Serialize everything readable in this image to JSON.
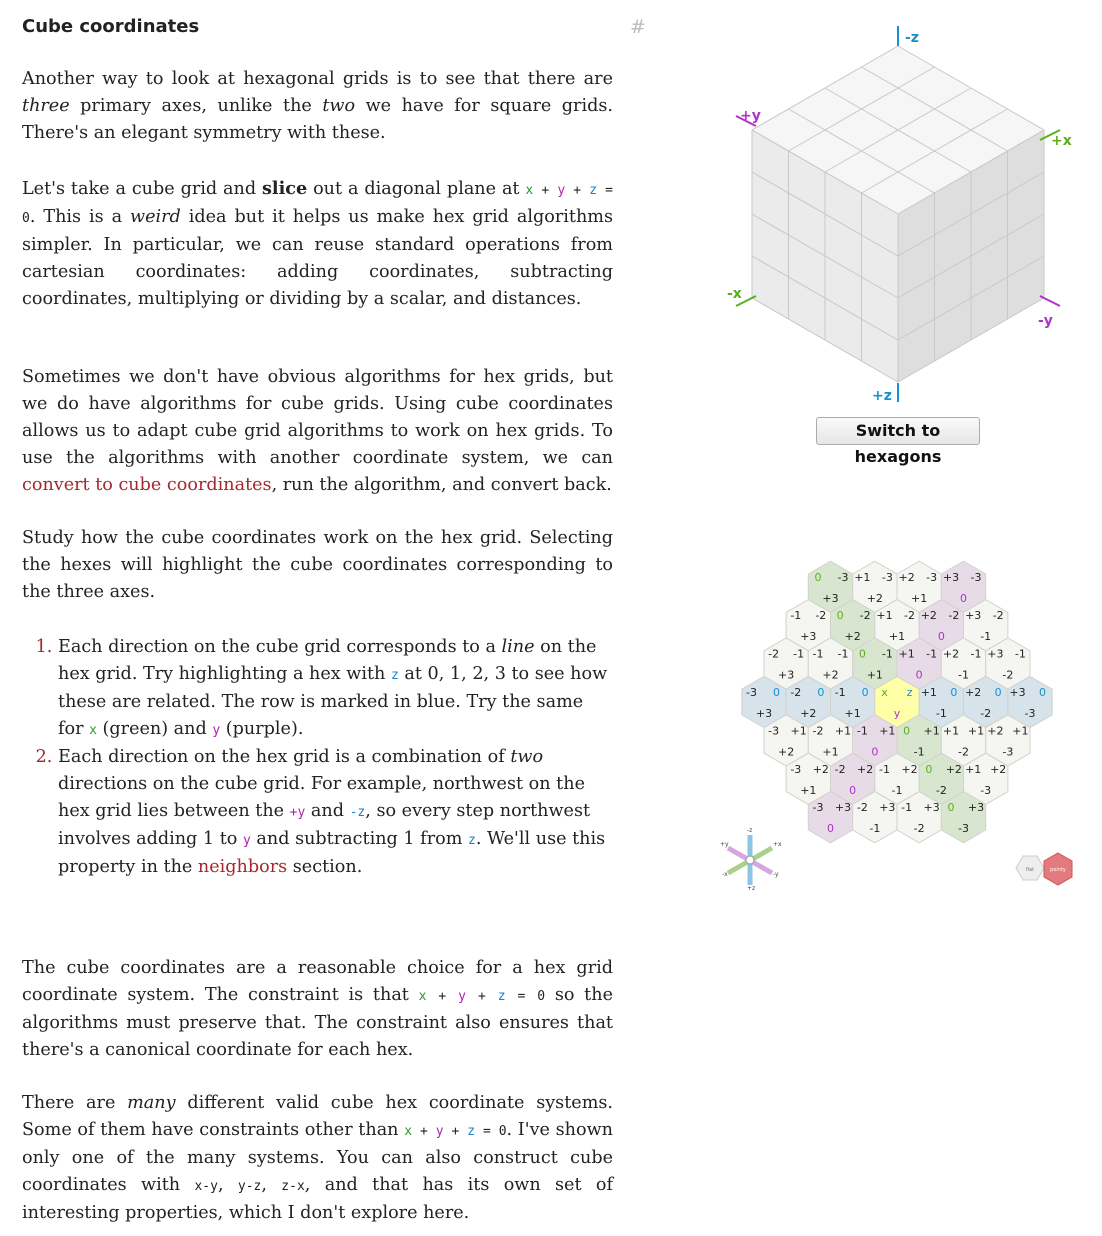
{
  "section": {
    "title": "Cube coordinates",
    "anchor": "#"
  },
  "p1": {
    "a": "Another way to look at hexagonal grids is to see that there are ",
    "b": "three",
    "c": " primary axes, unlike the ",
    "d": "two",
    "e": " we have for square grids. There's an elegant symmetry with these."
  },
  "p2": {
    "a": "Let's take a cube grid and ",
    "b": "slice",
    "c": " out a diagonal plane at ",
    "eq": {
      "x": "x",
      "p1": " + ",
      "y": "y",
      "p2": " + ",
      "z": "z",
      "eq": " = 0"
    },
    "d": ". This is a ",
    "e": "weird",
    "f": " idea but it helps us make hex grid algorithms simpler. In particular, we can reuse standard operations from cartesian coordinates: adding coordinates, subtracting coordinates, multiplying or dividing by a scalar, and distances."
  },
  "p3": {
    "a": "Sometimes we don't have obvious algorithms for hex grids, but we do have algorithms for cube grids. Using cube coordinates allows us to adapt cube grid algorithms to work on hex grids. To use the algorithms with another coordinate system, we can ",
    "link": "convert to cube coordinates",
    "b": ", run the algorithm, and convert back."
  },
  "p4": {
    "text": "Study how the cube coordinates work on the hex grid. Selecting the hexes will highlight the cube coordinates corresponding to the three axes."
  },
  "list": {
    "i1": {
      "a": "Each direction on the cube grid corresponds to a ",
      "b": "line",
      "c": " on the hex grid. Try highlighting a hex with ",
      "z": "z",
      "d": " at 0, 1, 2, 3 to see how these are related. The row is marked in blue. Try the same for ",
      "x": "x",
      "e": " (green) and ",
      "y": "y",
      "f": " (purple)."
    },
    "i2": {
      "a": "Each direction on the hex grid is a combination of ",
      "b": "two",
      "c": " directions on the cube grid. For example, northwest on the hex grid lies between the ",
      "py": "+y",
      "d": " and ",
      "mz": "-z",
      "e": ", so every step northwest involves adding 1 to ",
      "y": "y",
      "f": " and subtracting 1 from ",
      "z": "z",
      "g": ". We'll use this property in the ",
      "link": "neighbors",
      "h": " section."
    }
  },
  "p5": {
    "a": "The cube coordinates are a reasonable choice for a hex grid coordinate system. The constraint is that ",
    "eq": {
      "x": "x",
      "p1": " + ",
      "y": "y",
      "p2": " + ",
      "z": "z",
      "eq": " = 0"
    },
    "b": " so the algorithms must preserve that. The constraint also ensures that there's a canonical coordinate for each hex."
  },
  "p6": {
    "a": "There are ",
    "b": "many",
    "c": " different valid cube hex coordinate systems. Some of them have constraints other than ",
    "eq": {
      "x": "x",
      "p1": " + ",
      "y": "y",
      "p2": " + ",
      "z": "z",
      "eq": " = 0"
    },
    "d": ". I've shown only one of the many systems. You can also construct cube coordinates with ",
    "c1": "x-y",
    "s1": ", ",
    "c2": "y-z",
    "s2": ", ",
    "c3": "z-x",
    "e": ", and that has its own set of interesting properties, which I don't explore here."
  },
  "cube": {
    "axes": {
      "mz": "-z",
      "py": "+y",
      "px": "+x",
      "mx": "-x",
      "my": "-y",
      "pz": "+z"
    },
    "button": "Switch to hexagons"
  },
  "colors": {
    "x": "#5cae1e",
    "y": "#b032c8",
    "z": "#1a8fd0",
    "link": "#a3282f",
    "highlight": "#ffffa8"
  },
  "hexgrid": {
    "hexes": [
      {
        "q": 0,
        "r": -3,
        "x": "0",
        "y": "+3",
        "z": "-3"
      },
      {
        "q": 1,
        "r": -3,
        "x": "+1",
        "y": "+2",
        "z": "-3"
      },
      {
        "q": 2,
        "r": -3,
        "x": "+2",
        "y": "+1",
        "z": "-3"
      },
      {
        "q": 3,
        "r": -3,
        "x": "+3",
        "y": "0",
        "z": "-3"
      },
      {
        "q": -1,
        "r": -2,
        "x": "-1",
        "y": "+3",
        "z": "-2"
      },
      {
        "q": 0,
        "r": -2,
        "x": "0",
        "y": "+2",
        "z": "-2"
      },
      {
        "q": 1,
        "r": -2,
        "x": "+1",
        "y": "+1",
        "z": "-2"
      },
      {
        "q": 2,
        "r": -2,
        "x": "+2",
        "y": "0",
        "z": "-2"
      },
      {
        "q": 3,
        "r": -2,
        "x": "+3",
        "y": "-1",
        "z": "-2"
      },
      {
        "q": -2,
        "r": -1,
        "x": "-2",
        "y": "+3",
        "z": "-1"
      },
      {
        "q": -1,
        "r": -1,
        "x": "-1",
        "y": "+2",
        "z": "-1"
      },
      {
        "q": 0,
        "r": -1,
        "x": "0",
        "y": "+1",
        "z": "-1"
      },
      {
        "q": 1,
        "r": -1,
        "x": "+1",
        "y": "0",
        "z": "-1"
      },
      {
        "q": 2,
        "r": -1,
        "x": "+2",
        "y": "-1",
        "z": "-1"
      },
      {
        "q": 3,
        "r": -1,
        "x": "+3",
        "y": "-2",
        "z": "-1"
      },
      {
        "q": -3,
        "r": 0,
        "x": "-3",
        "y": "+3",
        "z": "0"
      },
      {
        "q": -2,
        "r": 0,
        "x": "-2",
        "y": "+2",
        "z": "0"
      },
      {
        "q": -1,
        "r": 0,
        "x": "-1",
        "y": "+1",
        "z": "0"
      },
      {
        "q": 0,
        "r": 0,
        "x": "x",
        "y": "y",
        "z": "z"
      },
      {
        "q": 1,
        "r": 0,
        "x": "+1",
        "y": "-1",
        "z": "0"
      },
      {
        "q": 2,
        "r": 0,
        "x": "+2",
        "y": "-2",
        "z": "0"
      },
      {
        "q": 3,
        "r": 0,
        "x": "+3",
        "y": "-3",
        "z": "0"
      },
      {
        "q": -3,
        "r": 1,
        "x": "-3",
        "y": "+2",
        "z": "+1"
      },
      {
        "q": -2,
        "r": 1,
        "x": "-2",
        "y": "+1",
        "z": "+1"
      },
      {
        "q": -1,
        "r": 1,
        "x": "-1",
        "y": "0",
        "z": "+1"
      },
      {
        "q": 0,
        "r": 1,
        "x": "0",
        "y": "-1",
        "z": "+1"
      },
      {
        "q": 1,
        "r": 1,
        "x": "+1",
        "y": "-2",
        "z": "+1"
      },
      {
        "q": 2,
        "r": 1,
        "x": "+2",
        "y": "-3",
        "z": "+1"
      },
      {
        "q": -3,
        "r": 2,
        "x": "-3",
        "y": "+1",
        "z": "+2"
      },
      {
        "q": -2,
        "r": 2,
        "x": "-2",
        "y": "0",
        "z": "+2"
      },
      {
        "q": -1,
        "r": 2,
        "x": "-1",
        "y": "-1",
        "z": "+2"
      },
      {
        "q": 0,
        "r": 2,
        "x": "0",
        "y": "-2",
        "z": "+2"
      },
      {
        "q": 1,
        "r": 2,
        "x": "+1",
        "y": "-3",
        "z": "+2"
      },
      {
        "q": -3,
        "r": 3,
        "x": "-3",
        "y": "0",
        "z": "+3"
      },
      {
        "q": -2,
        "r": 3,
        "x": "-2",
        "y": "-1",
        "z": "+3"
      },
      {
        "q": -1,
        "r": 3,
        "x": "-1",
        "y": "-2",
        "z": "+3"
      },
      {
        "q": 0,
        "r": 3,
        "x": "0",
        "y": "-3",
        "z": "+3"
      }
    ],
    "compass": {
      "mz": "-z",
      "py": "+y",
      "px": "+x",
      "mx": "-x",
      "my": "-y",
      "pz": "+z"
    },
    "toggle": {
      "flat": "flat",
      "pointy": "pointy"
    }
  }
}
